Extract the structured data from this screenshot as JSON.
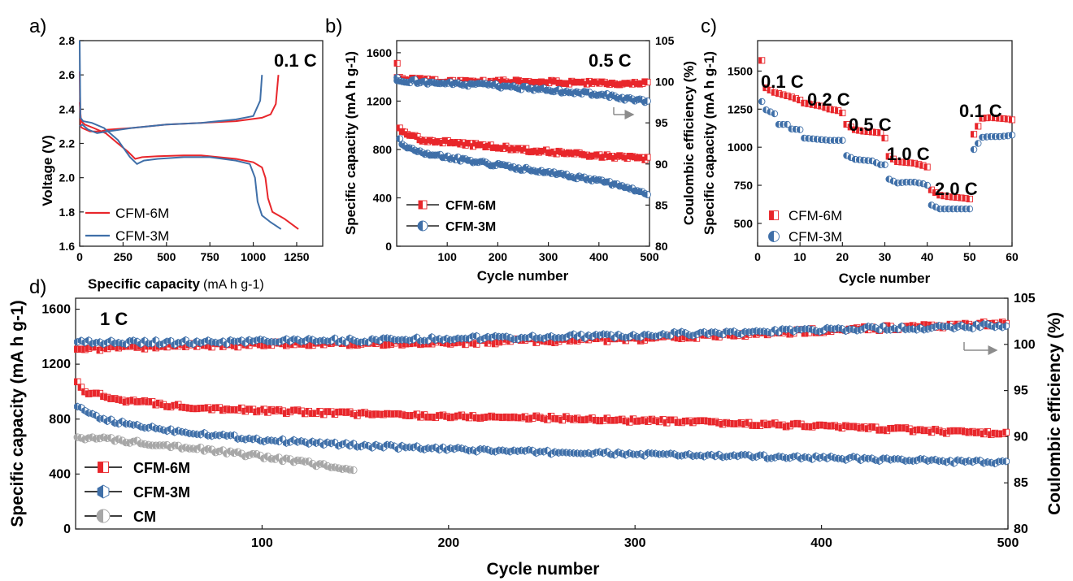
{
  "colors": {
    "red": "#e8262b",
    "blue": "#3f6fa8",
    "gray": "#a7a7a7",
    "arrow": "#8c8c8c"
  },
  "chart_data": [
    {
      "panel": "a)",
      "type": "line",
      "annotation": "0.1 C",
      "xlabel": "Specific capacity",
      "xlabel_unit": "(mA h g-1)",
      "ylabel": "Voltage (V)",
      "xlim": [
        0,
        1400
      ],
      "ylim": [
        1.6,
        2.8
      ],
      "xticks": [
        "0",
        "250",
        "500",
        "750",
        "1000",
        "1250"
      ],
      "yticks": [
        "1.6",
        "1.8",
        "2.0",
        "2.2",
        "2.4",
        "2.6",
        "2.8"
      ],
      "legend": {
        "position": "bottom-left"
      },
      "series": [
        {
          "name": "CFM-6M",
          "discharge": [
            [
              0,
              2.44
            ],
            [
              8,
              2.33
            ],
            [
              30,
              2.31
            ],
            [
              80,
              2.29
            ],
            [
              150,
              2.26
            ],
            [
              220,
              2.2
            ],
            [
              280,
              2.15
            ],
            [
              320,
              2.11
            ],
            [
              360,
              2.12
            ],
            [
              450,
              2.125
            ],
            [
              600,
              2.13
            ],
            [
              700,
              2.13
            ],
            [
              800,
              2.12
            ],
            [
              900,
              2.11
            ],
            [
              1000,
              2.09
            ],
            [
              1050,
              2.06
            ],
            [
              1070,
              2.0
            ],
            [
              1085,
              1.88
            ],
            [
              1110,
              1.8
            ],
            [
              1180,
              1.76
            ],
            [
              1260,
              1.7
            ]
          ],
          "charge": [
            [
              0,
              2.62
            ],
            [
              5,
              2.3
            ],
            [
              15,
              2.29
            ],
            [
              60,
              2.27
            ],
            [
              120,
              2.27
            ],
            [
              160,
              2.28
            ],
            [
              300,
              2.29
            ],
            [
              500,
              2.31
            ],
            [
              700,
              2.32
            ],
            [
              900,
              2.33
            ],
            [
              1050,
              2.35
            ],
            [
              1100,
              2.37
            ],
            [
              1130,
              2.43
            ],
            [
              1145,
              2.6
            ]
          ]
        },
        {
          "name": "CFM-3M",
          "discharge": [
            [
              0,
              2.8
            ],
            [
              4,
              2.35
            ],
            [
              20,
              2.33
            ],
            [
              70,
              2.32
            ],
            [
              140,
              2.29
            ],
            [
              220,
              2.22
            ],
            [
              290,
              2.12
            ],
            [
              330,
              2.08
            ],
            [
              370,
              2.1
            ],
            [
              450,
              2.11
            ],
            [
              600,
              2.12
            ],
            [
              750,
              2.12
            ],
            [
              900,
              2.1
            ],
            [
              980,
              2.08
            ],
            [
              1010,
              2.0
            ],
            [
              1025,
              1.86
            ],
            [
              1050,
              1.78
            ],
            [
              1100,
              1.74
            ],
            [
              1160,
              1.7
            ]
          ],
          "charge": [
            [
              0,
              2.3
            ],
            [
              15,
              2.31
            ],
            [
              50,
              2.28
            ],
            [
              100,
              2.26
            ],
            [
              160,
              2.27
            ],
            [
              300,
              2.29
            ],
            [
              500,
              2.31
            ],
            [
              700,
              2.32
            ],
            [
              900,
              2.34
            ],
            [
              1000,
              2.36
            ],
            [
              1040,
              2.45
            ],
            [
              1050,
              2.6
            ]
          ]
        }
      ]
    },
    {
      "panel": "b)",
      "type": "scatter",
      "annotation": "0.5 C",
      "xlabel": "Cycle number",
      "ylabel": "Specific capacity (mA h g-1)",
      "ylabel2": "Coulombic efficiency (%)",
      "xlim": [
        0,
        500
      ],
      "ylim": [
        0,
        1700
      ],
      "y2lim": [
        80,
        105
      ],
      "xticks": [
        "100",
        "200",
        "300",
        "400",
        "500"
      ],
      "yticks": [
        "0",
        "400",
        "800",
        "1200",
        "1600"
      ],
      "y2ticks": [
        "80",
        "85",
        "90",
        "95",
        "100",
        "105"
      ],
      "legend": {
        "position": "bottom-left"
      },
      "series": [
        {
          "name": "CFM-6M",
          "capacity_points": [
            [
              1,
              1500
            ],
            [
              3,
              1000
            ],
            [
              10,
              940
            ],
            [
              50,
              880
            ],
            [
              100,
              860
            ],
            [
              150,
              840
            ],
            [
              200,
              820
            ],
            [
              250,
              800
            ],
            [
              300,
              780
            ],
            [
              350,
              765
            ],
            [
              400,
              750
            ],
            [
              450,
              735
            ],
            [
              500,
              720
            ]
          ],
          "efficiency_points": [
            [
              1,
              100.5
            ],
            [
              100,
              100
            ],
            [
              200,
              100
            ],
            [
              300,
              100
            ],
            [
              400,
              99.8
            ],
            [
              500,
              99.8
            ]
          ]
        },
        {
          "name": "CFM-3M",
          "capacity_points": [
            [
              1,
              1400
            ],
            [
              3,
              900
            ],
            [
              10,
              840
            ],
            [
              50,
              780
            ],
            [
              100,
              740
            ],
            [
              150,
              700
            ],
            [
              200,
              670
            ],
            [
              250,
              640
            ],
            [
              300,
              610
            ],
            [
              350,
              575
            ],
            [
              400,
              540
            ],
            [
              450,
              490
            ],
            [
              500,
              430
            ]
          ],
          "efficiency_points": [
            [
              1,
              100.2
            ],
            [
              100,
              99.8
            ],
            [
              200,
              99.5
            ],
            [
              300,
              99.0
            ],
            [
              400,
              98.5
            ],
            [
              500,
              97.5
            ]
          ]
        }
      ]
    },
    {
      "panel": "c)",
      "type": "scatter",
      "xlabel": "Cycle number",
      "ylabel": "Specific capacity (mA h g-1)",
      "xlim": [
        0,
        60
      ],
      "ylim": [
        350,
        1700
      ],
      "xticks": [
        "0",
        "10",
        "20",
        "30",
        "40",
        "50",
        "60"
      ],
      "yticks": [
        "500",
        "750",
        "1000",
        "1250",
        "1500"
      ],
      "annotations": [
        "0.1 C",
        "0.2 C",
        "0.5 C",
        "1.0 C",
        "2.0 C",
        "0.1 C"
      ],
      "legend": {
        "position": "bottom-left"
      },
      "series": [
        {
          "name": "CFM-6M",
          "points": [
            [
              1,
              1570
            ],
            [
              2,
              1390
            ],
            [
              4,
              1360
            ],
            [
              6,
              1345
            ],
            [
              8,
              1330
            ],
            [
              10,
              1310
            ],
            [
              11,
              1290
            ],
            [
              13,
              1280
            ],
            [
              15,
              1270
            ],
            [
              17,
              1250
            ],
            [
              19,
              1240
            ],
            [
              20,
              1225
            ],
            [
              21,
              1150
            ],
            [
              23,
              1115
            ],
            [
              25,
              1105
            ],
            [
              27,
              1100
            ],
            [
              29,
              1095
            ],
            [
              30,
              1060
            ],
            [
              31,
              940
            ],
            [
              33,
              905
            ],
            [
              35,
              900
            ],
            [
              37,
              895
            ],
            [
              39,
              880
            ],
            [
              40,
              870
            ],
            [
              41,
              720
            ],
            [
              43,
              685
            ],
            [
              45,
              675
            ],
            [
              47,
              670
            ],
            [
              49,
              665
            ],
            [
              50,
              660
            ],
            [
              51,
              1085
            ],
            [
              53,
              1190
            ],
            [
              55,
              1195
            ],
            [
              57,
              1190
            ],
            [
              59,
              1185
            ],
            [
              60,
              1180
            ]
          ]
        },
        {
          "name": "CFM-3M",
          "points": [
            [
              1,
              1300
            ],
            [
              2,
              1245
            ],
            [
              4,
              1220
            ],
            [
              5,
              1150
            ],
            [
              7,
              1150
            ],
            [
              8,
              1120
            ],
            [
              10,
              1115
            ],
            [
              11,
              1060
            ],
            [
              13,
              1055
            ],
            [
              15,
              1050
            ],
            [
              17,
              1045
            ],
            [
              19,
              1045
            ],
            [
              20,
              1045
            ],
            [
              21,
              945
            ],
            [
              23,
              920
            ],
            [
              25,
              915
            ],
            [
              27,
              910
            ],
            [
              29,
              885
            ],
            [
              30,
              885
            ],
            [
              31,
              790
            ],
            [
              33,
              765
            ],
            [
              35,
              770
            ],
            [
              37,
              770
            ],
            [
              39,
              760
            ],
            [
              40,
              750
            ],
            [
              41,
              620
            ],
            [
              43,
              595
            ],
            [
              45,
              595
            ],
            [
              47,
              595
            ],
            [
              49,
              595
            ],
            [
              50,
              595
            ],
            [
              51,
              985
            ],
            [
              53,
              1065
            ],
            [
              55,
              1070
            ],
            [
              57,
              1070
            ],
            [
              59,
              1075
            ],
            [
              60,
              1080
            ]
          ]
        }
      ]
    },
    {
      "panel": "d)",
      "type": "scatter",
      "annotation": "1 C",
      "xlabel": "Cycle number",
      "ylabel": "Specific capacity (mA h g-1)",
      "ylabel2": "Coulombic efficiency (%)",
      "xlim": [
        0,
        500
      ],
      "ylim": [
        0,
        1680
      ],
      "y2lim": [
        80,
        105
      ],
      "xticks": [
        "100",
        "200",
        "300",
        "400",
        "500"
      ],
      "yticks": [
        "0",
        "400",
        "800",
        "1200",
        "1600"
      ],
      "y2ticks": [
        "80",
        "85",
        "90",
        "95",
        "100",
        "105"
      ],
      "legend": {
        "position": "bottom-left"
      },
      "series": [
        {
          "name": "CFM-6M",
          "capacity_points": [
            [
              1,
              1060
            ],
            [
              5,
              1000
            ],
            [
              20,
              950
            ],
            [
              50,
              900
            ],
            [
              100,
              860
            ],
            [
              150,
              840
            ],
            [
              200,
              820
            ],
            [
              250,
              810
            ],
            [
              300,
              790
            ],
            [
              350,
              770
            ],
            [
              400,
              750
            ],
            [
              450,
              720
            ],
            [
              500,
              690
            ]
          ],
          "efficiency_points": [
            [
              1,
              99.5
            ],
            [
              50,
              99.8
            ],
            [
              100,
              100
            ],
            [
              200,
              100.2
            ],
            [
              300,
              100.6
            ],
            [
              400,
              101.5
            ],
            [
              500,
              102.3
            ]
          ]
        },
        {
          "name": "CFM-3M",
          "capacity_points": [
            [
              1,
              900
            ],
            [
              5,
              850
            ],
            [
              20,
              780
            ],
            [
              50,
              720
            ],
            [
              100,
              650
            ],
            [
              150,
              610
            ],
            [
              200,
              580
            ],
            [
              250,
              560
            ],
            [
              300,
              545
            ],
            [
              350,
              530
            ],
            [
              400,
              520
            ],
            [
              450,
              500
            ],
            [
              500,
              480
            ]
          ],
          "efficiency_points": [
            [
              1,
              100.2
            ],
            [
              50,
              100.2
            ],
            [
              100,
              100.3
            ],
            [
              200,
              100.6
            ],
            [
              300,
              101
            ],
            [
              400,
              101.6
            ],
            [
              500,
              102
            ]
          ]
        },
        {
          "name": "CM",
          "capacity_points": [
            [
              1,
              670
            ],
            [
              20,
              650
            ],
            [
              50,
              610
            ],
            [
              80,
              560
            ],
            [
              110,
              510
            ],
            [
              130,
              470
            ],
            [
              150,
              420
            ]
          ]
        }
      ]
    }
  ]
}
